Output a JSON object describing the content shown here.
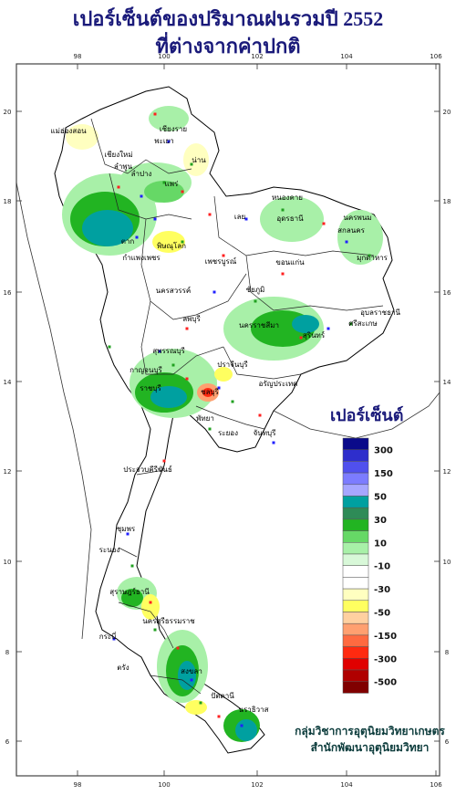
{
  "title": {
    "line1": "เปอร์เซ็นต์ของปริมาณฝนรวมปี 2552",
    "line2": "ที่ต่างจากค่าปกติ"
  },
  "map": {
    "lon_ticks": [
      "98",
      "100",
      "102",
      "104",
      "106"
    ],
    "lat_ticks": [
      "20",
      "18",
      "16",
      "14",
      "12",
      "10",
      "8",
      "6"
    ],
    "provinces": [
      "แม่ฮ่องสอน",
      "เชียงราย",
      "พะเยา",
      "เชียงใหม่",
      "ลำพูน",
      "ลำปาง",
      "น่าน",
      "แพร่",
      "เลย",
      "หนองคาย",
      "อุดรธานี",
      "นครพนม",
      "สกลนคร",
      "มุกดาหาร",
      "พิษณุโลก",
      "ตาก",
      "กำแพงเพชร",
      "เพชรบูรณ์",
      "ขอนแก่น",
      "อุบลราชธานี",
      "ชัยภูมิ",
      "นครสวรรค์",
      "ลพบุรี",
      "สุพรรณบุรี",
      "กาญจนบุรี",
      "ราชบุรี",
      "นครราชสีมา",
      "สุรินทร์",
      "ศรีสะเกษ",
      "ปราจีนบุรี",
      "อรัญประเทศ",
      "ชลบุรี",
      "พัทยา",
      "ระยอง",
      "จันทบุรี",
      "ประจวบคีรีขันธ์",
      "ชุมพร",
      "ระนอง",
      "สุราษฎร์ธานี",
      "นครศรีธรรมราช",
      "กระบี่",
      "ตรัง",
      "สงขลา",
      "ปัตตานี",
      "นราธิวาส"
    ]
  },
  "legend": {
    "title": "เปอร์เซ็นต์",
    "labels": [
      "300",
      "150",
      "50",
      "30",
      "10",
      "-10",
      "-30",
      "-50",
      "-150",
      "-300",
      "-500"
    ],
    "colors": [
      "#0a0a8a",
      "#2e2ecc",
      "#5050ee",
      "#7c7cff",
      "#a6a6ff",
      "#00a0a0",
      "#2e8b57",
      "#22b422",
      "#66d866",
      "#a8f0a8",
      "#d8f8d8",
      "#ffffff",
      "#ffffff",
      "#ffffc0",
      "#ffff60",
      "#ffd0a0",
      "#ffa070",
      "#ff6a40",
      "#ff2a10",
      "#e00000",
      "#b00000",
      "#800000"
    ]
  },
  "credit": {
    "line1": "กลุ่มวิชาการอุตุนิยมวิทยาเกษตร",
    "line2": "สำนักพัฒนาอุตุนิยมวิทยา"
  }
}
